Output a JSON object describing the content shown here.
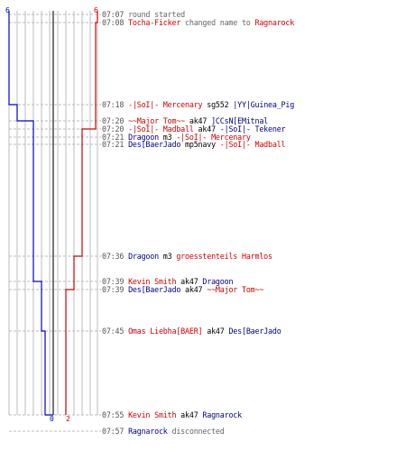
{
  "top_scores": {
    "left": "6",
    "right": "6"
  },
  "bottom_scores": {
    "left": "0",
    "right": "2"
  },
  "colors": {
    "red": "#cc0000",
    "blue": "#0000cc",
    "text_blue": "#000088",
    "grid": "#bbbbbb",
    "dash": "#bbbbbb"
  },
  "events": [
    {
      "time": "07:07",
      "parts": [
        {
          "text": "round started",
          "style": "msg"
        }
      ]
    },
    {
      "time": "07:08",
      "parts": [
        {
          "text": "Tocha-Ficker",
          "style": "red"
        },
        {
          "text": " changed name to ",
          "style": "msg"
        },
        {
          "text": "Ragnarock",
          "style": "red"
        }
      ]
    },
    {
      "time": "07:18",
      "parts": [
        {
          "text": "-|SoI|- Mercenary",
          "style": "red"
        },
        {
          "text": " sg552 ",
          "style": "act"
        },
        {
          "text": "|YY|Guinea_Pig",
          "style": "blue"
        }
      ]
    },
    {
      "time": "07:20",
      "parts": [
        {
          "text": "~~Major Tom~~",
          "style": "red"
        },
        {
          "text": " ak47 ",
          "style": "act"
        },
        {
          "text": "]CCsN[EMitnal",
          "style": "blue"
        }
      ]
    },
    {
      "time": "07:20",
      "parts": [
        {
          "text": "-|SoI|- Madball",
          "style": "red"
        },
        {
          "text": " ak47 ",
          "style": "act"
        },
        {
          "text": "-|SoI|- Tekener",
          "style": "blue"
        }
      ]
    },
    {
      "time": "07:21",
      "parts": [
        {
          "text": "Dragoon",
          "style": "blue"
        },
        {
          "text": " m3 ",
          "style": "act"
        },
        {
          "text": "-|SoI|- Mercenary",
          "style": "red"
        }
      ]
    },
    {
      "time": "07:21",
      "parts": [
        {
          "text": "Des[BaerJado",
          "style": "blue"
        },
        {
          "text": " mp5navy ",
          "style": "act"
        },
        {
          "text": "-|SoI|- Madball",
          "style": "red"
        }
      ]
    },
    {
      "time": "07:36",
      "parts": [
        {
          "text": "Dragoon",
          "style": "blue"
        },
        {
          "text": " m3 ",
          "style": "act"
        },
        {
          "text": "groesstenteils Harmlos",
          "style": "red"
        }
      ]
    },
    {
      "time": "07:39",
      "parts": [
        {
          "text": "Kevin Smith",
          "style": "red"
        },
        {
          "text": " ak47 ",
          "style": "act"
        },
        {
          "text": "Dragoon",
          "style": "blue"
        }
      ]
    },
    {
      "time": "07:39",
      "parts": [
        {
          "text": "Des[BaerJado",
          "style": "blue"
        },
        {
          "text": " ak47 ",
          "style": "act"
        },
        {
          "text": "~~Major Tom~~",
          "style": "red"
        }
      ]
    },
    {
      "time": "07:45",
      "parts": [
        {
          "text": "Omas Liebha[BAER]",
          "style": "red"
        },
        {
          "text": " ak47 ",
          "style": "act"
        },
        {
          "text": "Des[BaerJado",
          "style": "blue"
        }
      ]
    },
    {
      "time": "07:55",
      "parts": [
        {
          "text": "Kevin Smith",
          "style": "red"
        },
        {
          "text": " ak47 ",
          "style": "act"
        },
        {
          "text": "Ragnarock",
          "style": "blue"
        }
      ]
    },
    {
      "time": "07:57",
      "parts": [
        {
          "text": "Ragnarock",
          "style": "blue"
        },
        {
          "text": " disconnected",
          "style": "msg"
        }
      ]
    }
  ]
}
